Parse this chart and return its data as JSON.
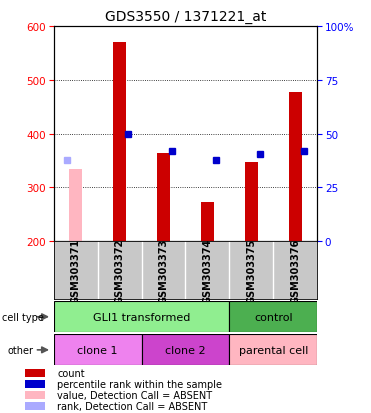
{
  "title": "GDS3550 / 1371221_at",
  "samples": [
    "GSM303371",
    "GSM303372",
    "GSM303373",
    "GSM303374",
    "GSM303375",
    "GSM303376"
  ],
  "count_values": [
    null,
    570,
    363,
    272,
    348,
    477
  ],
  "count_absent": [
    335,
    null,
    null,
    null,
    null,
    null
  ],
  "percentile_values": [
    null,
    400,
    368,
    350,
    362,
    368
  ],
  "percentile_absent": [
    350,
    null,
    null,
    null,
    null,
    null
  ],
  "ylim_left": [
    200,
    600
  ],
  "ylim_right": [
    0,
    100
  ],
  "yticks_left": [
    200,
    300,
    400,
    500,
    600
  ],
  "yticks_right": [
    0,
    25,
    50,
    75,
    100
  ],
  "cell_type_groups": [
    {
      "label": "GLI1 transformed",
      "span": [
        0,
        4
      ],
      "color": "#90EE90"
    },
    {
      "label": "control",
      "span": [
        4,
        6
      ],
      "color": "#4CAF50"
    }
  ],
  "other_groups": [
    {
      "label": "clone 1",
      "span": [
        0,
        2
      ],
      "color": "#EE82EE"
    },
    {
      "label": "clone 2",
      "span": [
        2,
        4
      ],
      "color": "#CC44CC"
    },
    {
      "label": "parental cell",
      "span": [
        4,
        6
      ],
      "color": "#FFB6C1"
    }
  ],
  "bar_color_red": "#CC0000",
  "bar_color_pink": "#FFB6C1",
  "dot_color_blue": "#0000CC",
  "dot_color_lightblue": "#AAAAFF",
  "legend_items": [
    {
      "color": "#CC0000",
      "label": "count"
    },
    {
      "color": "#0000CC",
      "label": "percentile rank within the sample"
    },
    {
      "color": "#FFB6C1",
      "label": "value, Detection Call = ABSENT"
    },
    {
      "color": "#AAAAFF",
      "label": "rank, Detection Call = ABSENT"
    }
  ]
}
